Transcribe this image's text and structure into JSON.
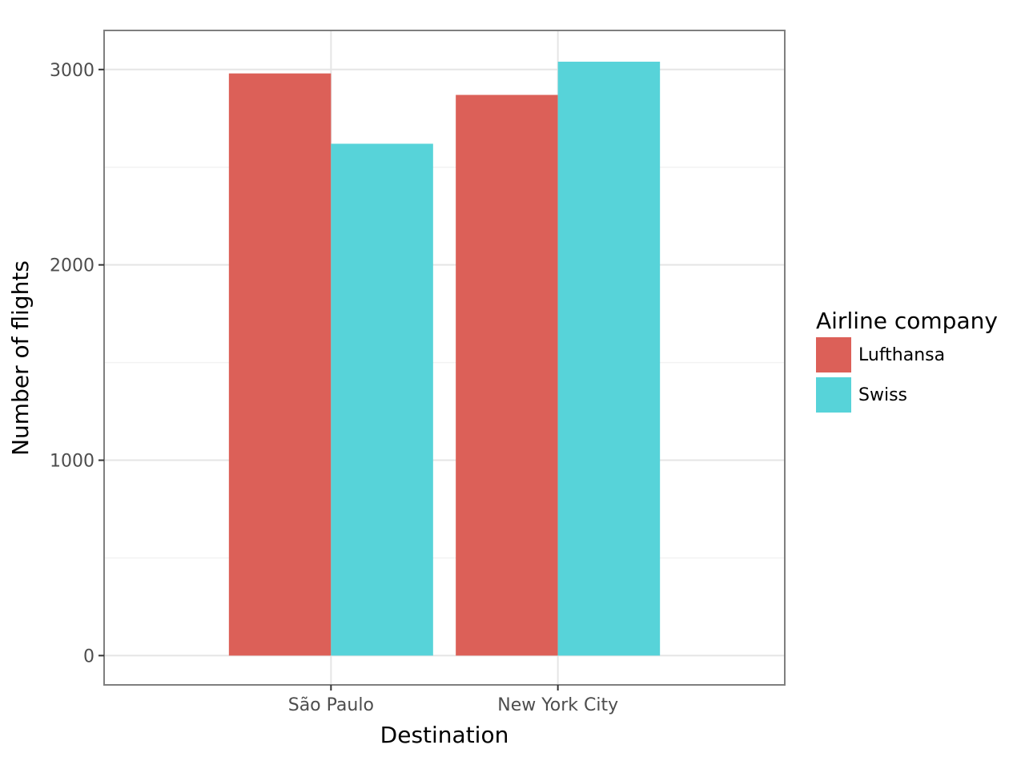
{
  "chart_data": {
    "type": "bar",
    "title": "",
    "xlabel": "Destination",
    "ylabel": "Number of flights",
    "categories": [
      "São Paulo",
      "New York City"
    ],
    "series": [
      {
        "name": "Lufthansa",
        "values": [
          2980,
          2870
        ],
        "color": "#dc6058"
      },
      {
        "name": "Swiss",
        "values": [
          2620,
          3040
        ],
        "color": "#57d3d9"
      }
    ],
    "ylim": [
      -150,
      3200
    ],
    "y_ticks": [
      0,
      1000,
      2000,
      3000
    ],
    "y_tick_labels": [
      "0",
      "1000",
      "2000",
      "3000"
    ],
    "grid": true,
    "legend": {
      "title": "Airline company",
      "position": "right"
    }
  }
}
